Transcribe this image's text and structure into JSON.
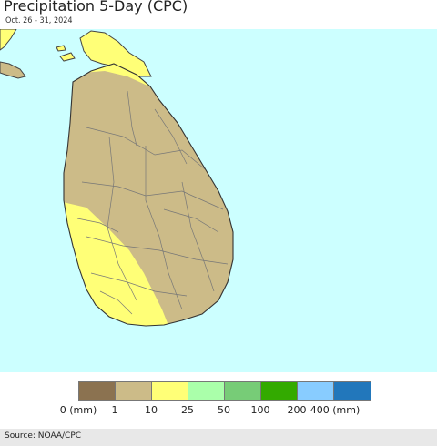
{
  "header": {
    "title": "Precipitation 5-Day (CPC)",
    "date_range": "Oct. 26 - 31, 2024"
  },
  "map": {
    "region": "Sri Lanka",
    "ocean_color": "#ccffff",
    "land_color": "#ccbb88",
    "wet_color": "#ffff77",
    "border_color": "#555555"
  },
  "legend": {
    "colors": [
      "#8b7250",
      "#ccbb88",
      "#ffff77",
      "#aaffaa",
      "#77cc77",
      "#33aa00",
      "#88ccff",
      "#2277bb"
    ],
    "ticks": [
      "0 (mm)",
      "1",
      "10",
      "25",
      "50",
      "100",
      "200",
      "400 (mm)"
    ]
  },
  "footer": {
    "source": "Source: NOAA/CPC"
  }
}
